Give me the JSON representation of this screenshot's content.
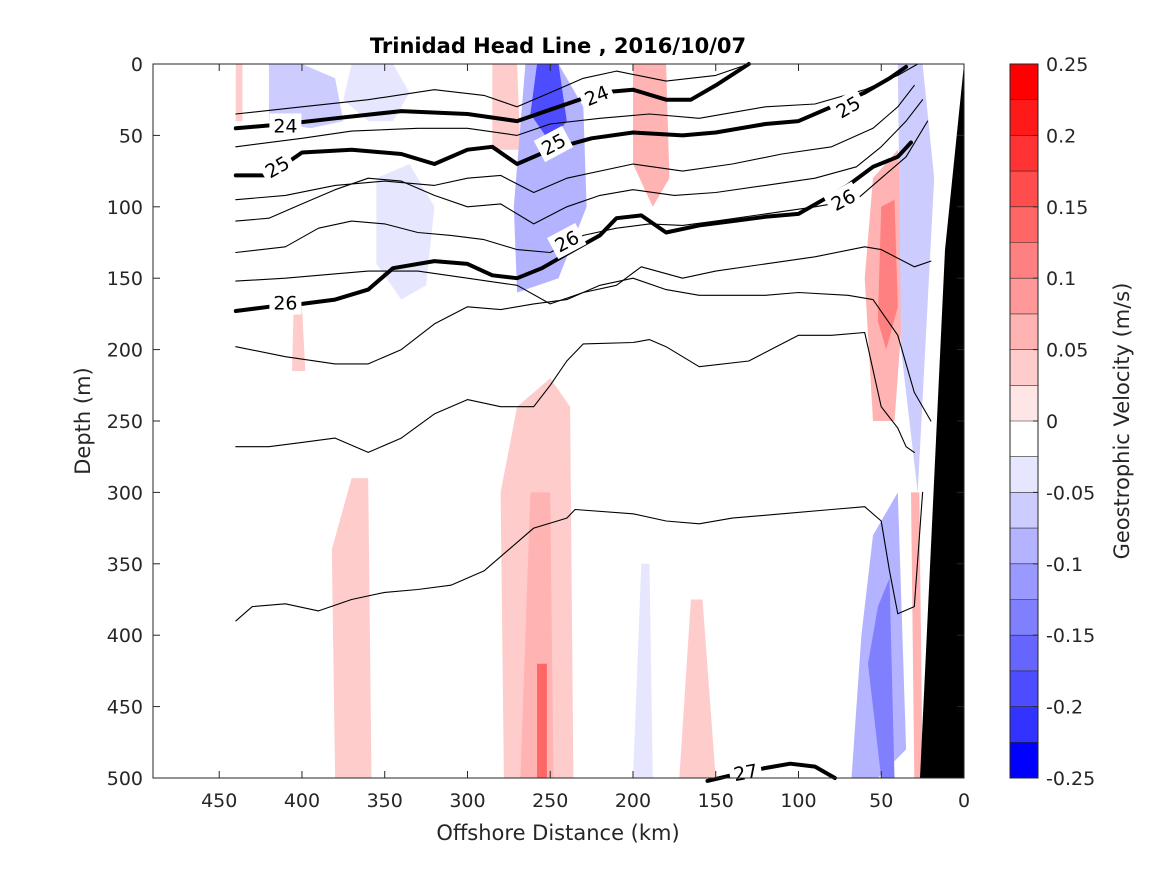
{
  "chart_data": {
    "type": "heatmap",
    "title": "Trinidad Head Line , 2016/10/07",
    "xlabel": "Offshore Distance (km)",
    "ylabel": "Depth (m)",
    "xlim": [
      490,
      0
    ],
    "ylim": [
      500,
      0
    ],
    "x_ticks": [
      "450",
      "400",
      "350",
      "300",
      "250",
      "200",
      "150",
      "100",
      "50",
      "0"
    ],
    "y_ticks": [
      "0",
      "50",
      "100",
      "150",
      "200",
      "250",
      "300",
      "350",
      "400",
      "450",
      "500"
    ],
    "colorbar": {
      "label": "Geostrophic Velocity (m/s)",
      "range": [
        -0.25,
        0.25
      ],
      "tick_labels": [
        "0.25",
        "0.2",
        "0.15",
        "0.1",
        "0.05",
        "0",
        "-0.05",
        "-0.1",
        "-0.15",
        "-0.2",
        "-0.25"
      ],
      "levels": [
        {
          "lo": 0.225,
          "hi": 0.25,
          "color": "#ff0000"
        },
        {
          "lo": 0.2,
          "hi": 0.225,
          "color": "#ff1a1a"
        },
        {
          "lo": 0.175,
          "hi": 0.2,
          "color": "#ff3333"
        },
        {
          "lo": 0.15,
          "hi": 0.175,
          "color": "#ff4d4d"
        },
        {
          "lo": 0.125,
          "hi": 0.15,
          "color": "#ff6666"
        },
        {
          "lo": 0.1,
          "hi": 0.125,
          "color": "#ff8080"
        },
        {
          "lo": 0.075,
          "hi": 0.1,
          "color": "#ff9999"
        },
        {
          "lo": 0.05,
          "hi": 0.075,
          "color": "#ffb3b3"
        },
        {
          "lo": 0.025,
          "hi": 0.05,
          "color": "#ffcccc"
        },
        {
          "lo": 0.0,
          "hi": 0.025,
          "color": "#ffe6e6"
        },
        {
          "lo": -0.025,
          "hi": 0.0,
          "color": "#ffffff"
        },
        {
          "lo": -0.05,
          "hi": -0.025,
          "color": "#e6e6ff"
        },
        {
          "lo": -0.075,
          "hi": -0.05,
          "color": "#ccccff"
        },
        {
          "lo": -0.1,
          "hi": -0.075,
          "color": "#b3b3ff"
        },
        {
          "lo": -0.125,
          "hi": -0.1,
          "color": "#9999ff"
        },
        {
          "lo": -0.15,
          "hi": -0.125,
          "color": "#8080ff"
        },
        {
          "lo": -0.175,
          "hi": -0.15,
          "color": "#6666ff"
        },
        {
          "lo": -0.2,
          "hi": -0.175,
          "color": "#4d4dff"
        },
        {
          "lo": -0.225,
          "hi": -0.2,
          "color": "#3333ff"
        },
        {
          "lo": -0.25,
          "hi": -0.225,
          "color": "#0000ff"
        }
      ]
    },
    "velocity_patches": [
      {
        "x": [
          440,
          436,
          436,
          440
        ],
        "y": [
          0,
          0,
          40,
          40
        ],
        "v": 0.04
      },
      {
        "x": [
          420,
          400,
          380,
          375,
          395,
          420
        ],
        "y": [
          0,
          0,
          10,
          40,
          45,
          40
        ],
        "v": -0.07
      },
      {
        "x": [
          370,
          345,
          335,
          345,
          360,
          375
        ],
        "y": [
          0,
          0,
          20,
          40,
          40,
          25
        ],
        "v": -0.05
      },
      {
        "x": [
          355,
          335,
          320,
          325,
          340,
          355
        ],
        "y": [
          80,
          70,
          100,
          155,
          165,
          140
        ],
        "v": -0.05
      },
      {
        "x": [
          285,
          270,
          268,
          285
        ],
        "y": [
          0,
          0,
          60,
          60
        ],
        "v": 0.04
      },
      {
        "x": [
          265,
          245,
          230,
          228,
          245,
          270,
          272
        ],
        "y": [
          0,
          0,
          30,
          100,
          150,
          160,
          100
        ],
        "v": -0.08
      },
      {
        "x": [
          258,
          245,
          240,
          250,
          262
        ],
        "y": [
          0,
          0,
          40,
          55,
          35
        ],
        "v": -0.2
      },
      {
        "x": [
          200,
          180,
          178,
          188,
          200
        ],
        "y": [
          0,
          0,
          80,
          100,
          70
        ],
        "v": 0.05
      },
      {
        "x": [
          55,
          40,
          35,
          42,
          55,
          60
        ],
        "y": [
          80,
          60,
          140,
          250,
          250,
          150
        ],
        "v": 0.07
      },
      {
        "x": [
          50,
          42,
          40,
          47,
          52
        ],
        "y": [
          100,
          95,
          170,
          200,
          180
        ],
        "v": 0.1
      },
      {
        "x": [
          40,
          25,
          18,
          28,
          38
        ],
        "y": [
          0,
          0,
          80,
          300,
          200
        ],
        "v": -0.07
      },
      {
        "x": [
          405,
          400,
          398,
          406
        ],
        "y": [
          170,
          170,
          215,
          215
        ],
        "v": 0.03
      },
      {
        "x": [
          370,
          360,
          358,
          380,
          382
        ],
        "y": [
          290,
          290,
          500,
          500,
          340
        ],
        "v": 0.03
      },
      {
        "x": [
          270,
          250,
          238,
          236,
          252,
          278,
          280
        ],
        "y": [
          240,
          220,
          240,
          500,
          500,
          500,
          300
        ],
        "v": 0.04
      },
      {
        "x": [
          262,
          250,
          248,
          268
        ],
        "y": [
          300,
          300,
          500,
          500
        ],
        "v": 0.07
      },
      {
        "x": [
          258,
          252,
          252,
          258
        ],
        "y": [
          420,
          420,
          500,
          500
        ],
        "v": 0.13
      },
      {
        "x": [
          195,
          190,
          188,
          200
        ],
        "y": [
          350,
          350,
          500,
          500
        ],
        "v": -0.03
      },
      {
        "x": [
          165,
          158,
          150,
          172
        ],
        "y": [
          375,
          375,
          500,
          500
        ],
        "v": 0.04
      },
      {
        "x": [
          55,
          40,
          35,
          52,
          68,
          62
        ],
        "y": [
          330,
          300,
          480,
          500,
          500,
          400
        ],
        "v": -0.08
      },
      {
        "x": [
          52,
          45,
          42,
          50,
          58
        ],
        "y": [
          380,
          360,
          500,
          500,
          420
        ],
        "v": -0.15
      },
      {
        "x": [
          32,
          27,
          25,
          30
        ],
        "y": [
          300,
          300,
          500,
          500
        ],
        "v": 0.07
      }
    ],
    "density_contours": [
      {
        "value": 24,
        "labeled": true,
        "bold": true,
        "x": [
          440,
          410,
          380,
          340,
          300,
          270,
          250,
          220,
          200,
          180,
          165,
          150,
          130
        ],
        "y": [
          45,
          42,
          38,
          33,
          35,
          40,
          32,
          20,
          18,
          25,
          25,
          15,
          0
        ]
      },
      {
        "value": 25,
        "labeled": true,
        "bold": true,
        "x": [
          440,
          420,
          400,
          370,
          340,
          320,
          300,
          285,
          270,
          250,
          225,
          200,
          170,
          150,
          120,
          100,
          80,
          60,
          45,
          35
        ],
        "y": [
          78,
          78,
          62,
          60,
          63,
          70,
          60,
          58,
          70,
          60,
          52,
          48,
          50,
          48,
          42,
          40,
          30,
          20,
          10,
          2
        ]
      },
      {
        "value": 26,
        "labeled": true,
        "bold": true,
        "x": [
          440,
          420,
          400,
          380,
          360,
          345,
          320,
          300,
          285,
          270,
          255,
          240,
          220,
          210,
          195,
          180,
          160,
          140,
          120,
          100,
          85,
          70,
          55,
          40,
          32
        ],
        "y": [
          173,
          170,
          168,
          165,
          158,
          143,
          138,
          140,
          148,
          150,
          143,
          133,
          120,
          108,
          106,
          118,
          113,
          110,
          107,
          105,
          95,
          85,
          72,
          65,
          55
        ]
      },
      {
        "value": 27,
        "labeled": true,
        "bold": true,
        "x": [
          155,
          140,
          120,
          105,
          90,
          78
        ],
        "y": [
          502,
          498,
          493,
          490,
          492,
          500
        ]
      },
      {
        "value": 23.5,
        "labeled": false,
        "bold": false,
        "x": [
          440,
          400,
          360,
          320,
          290,
          270,
          250,
          230,
          210,
          180,
          150,
          130
        ],
        "y": [
          35,
          30,
          25,
          18,
          22,
          30,
          20,
          10,
          5,
          12,
          8,
          0
        ]
      },
      {
        "value": 24.5,
        "labeled": false,
        "bold": false,
        "x": [
          440,
          400,
          370,
          330,
          300,
          270,
          250,
          220,
          190,
          160,
          120,
          90,
          60,
          40,
          28
        ],
        "y": [
          58,
          52,
          47,
          45,
          45,
          50,
          42,
          38,
          35,
          38,
          30,
          28,
          18,
          8,
          0
        ]
      },
      {
        "value": 25.3,
        "labeled": false,
        "bold": false,
        "x": [
          440,
          410,
          380,
          350,
          320,
          300,
          280,
          260,
          240,
          200,
          170,
          140,
          110,
          80,
          55,
          40,
          30
        ],
        "y": [
          95,
          92,
          85,
          82,
          85,
          80,
          78,
          90,
          80,
          70,
          75,
          70,
          63,
          58,
          45,
          30,
          15
        ]
      },
      {
        "value": 25.6,
        "labeled": false,
        "bold": false,
        "x": [
          440,
          420,
          400,
          380,
          360,
          340,
          320,
          300,
          280,
          260,
          240,
          220,
          200,
          175,
          150,
          120,
          90,
          65,
          50,
          35,
          25
        ],
        "y": [
          110,
          108,
          98,
          88,
          80,
          82,
          92,
          100,
          98,
          112,
          100,
          92,
          88,
          92,
          90,
          85,
          80,
          72,
          58,
          40,
          25
        ]
      },
      {
        "value": 25.8,
        "labeled": false,
        "bold": false,
        "x": [
          440,
          410,
          390,
          370,
          350,
          330,
          310,
          290,
          270,
          250,
          230,
          210,
          190,
          170,
          150,
          120,
          90,
          65,
          50,
          35,
          22
        ],
        "y": [
          132,
          128,
          115,
          110,
          112,
          118,
          120,
          123,
          130,
          132,
          120,
          115,
          112,
          113,
          110,
          105,
          100,
          95,
          80,
          65,
          40
        ]
      },
      {
        "value": 26.2,
        "labeled": false,
        "bold": false,
        "x": [
          440,
          410,
          390,
          360,
          330,
          300,
          270,
          250,
          230,
          210,
          195,
          170,
          150,
          120,
          90,
          60,
          50,
          30,
          20
        ],
        "y": [
          152,
          150,
          148,
          145,
          145,
          150,
          155,
          168,
          160,
          155,
          142,
          150,
          145,
          140,
          135,
          128,
          130,
          142,
          138
        ]
      },
      {
        "value": 26.4,
        "labeled": false,
        "bold": false,
        "x": [
          440,
          410,
          380,
          360,
          340,
          320,
          300,
          280,
          260,
          240,
          220,
          200,
          180,
          160,
          140,
          120,
          100,
          70,
          55,
          40,
          30,
          20
        ],
        "y": [
          198,
          205,
          210,
          210,
          200,
          182,
          170,
          172,
          168,
          165,
          155,
          150,
          158,
          162,
          162,
          162,
          160,
          162,
          165,
          190,
          230,
          250
        ]
      },
      {
        "value": 26.6,
        "labeled": false,
        "bold": false,
        "x": [
          440,
          420,
          400,
          380,
          360,
          340,
          320,
          300,
          280,
          260,
          250,
          240,
          230,
          200,
          190,
          180,
          160,
          130,
          100,
          80,
          60,
          50,
          40,
          35,
          30
        ],
        "y": [
          268,
          268,
          265,
          262,
          272,
          262,
          245,
          235,
          240,
          240,
          225,
          208,
          196,
          195,
          193,
          198,
          212,
          208,
          190,
          190,
          188,
          240,
          255,
          268,
          272
        ]
      },
      {
        "value": 26.8,
        "labeled": false,
        "bold": false,
        "x": [
          440,
          430,
          410,
          390,
          370,
          350,
          330,
          310,
          290,
          270,
          260,
          240,
          235,
          200,
          180,
          160,
          140,
          110,
          80,
          60,
          50,
          45,
          40,
          30,
          25
        ],
        "y": [
          390,
          380,
          378,
          383,
          375,
          370,
          368,
          365,
          355,
          335,
          325,
          318,
          312,
          315,
          320,
          322,
          318,
          315,
          312,
          310,
          320,
          355,
          385,
          380,
          300
        ]
      }
    ]
  }
}
